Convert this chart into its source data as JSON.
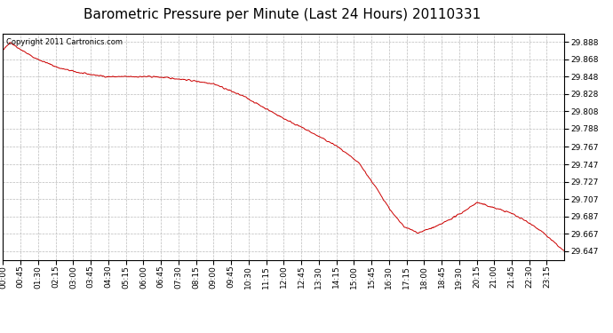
{
  "title": "Barometric Pressure per Minute (Last 24 Hours) 20110331",
  "copyright_text": "Copyright 2011 Cartronics.com",
  "line_color": "#cc0000",
  "background_color": "#ffffff",
  "grid_color": "#bbbbbb",
  "yticks": [
    29.647,
    29.667,
    29.687,
    29.707,
    29.727,
    29.747,
    29.767,
    29.788,
    29.808,
    29.828,
    29.848,
    29.868,
    29.888
  ],
  "ymin": 29.637,
  "ymax": 29.898,
  "xtick_labels": [
    "00:00",
    "00:45",
    "01:30",
    "02:15",
    "03:00",
    "03:45",
    "04:30",
    "05:15",
    "06:00",
    "06:45",
    "07:30",
    "08:15",
    "09:00",
    "09:45",
    "10:30",
    "11:15",
    "12:00",
    "12:45",
    "13:30",
    "14:15",
    "15:00",
    "15:45",
    "16:30",
    "17:15",
    "18:00",
    "18:45",
    "19:30",
    "20:15",
    "21:00",
    "21:45",
    "22:30",
    "23:15"
  ],
  "title_fontsize": 11,
  "copyright_fontsize": 6,
  "tick_fontsize": 6.5,
  "waypoints_t": [
    0,
    0.012,
    0.025,
    0.055,
    0.1,
    0.14,
    0.185,
    0.22,
    0.27,
    0.32,
    0.375,
    0.43,
    0.5,
    0.54,
    0.595,
    0.635,
    0.665,
    0.695,
    0.715,
    0.74,
    0.775,
    0.815,
    0.845,
    0.875,
    0.905,
    0.94,
    0.965,
    1.0
  ],
  "waypoints_v": [
    29.878,
    29.888,
    29.882,
    29.87,
    29.858,
    29.852,
    29.848,
    29.848,
    29.848,
    29.845,
    29.84,
    29.825,
    29.8,
    29.787,
    29.768,
    29.748,
    29.72,
    29.69,
    29.675,
    29.668,
    29.676,
    29.69,
    29.703,
    29.697,
    29.691,
    29.679,
    29.667,
    29.647
  ]
}
